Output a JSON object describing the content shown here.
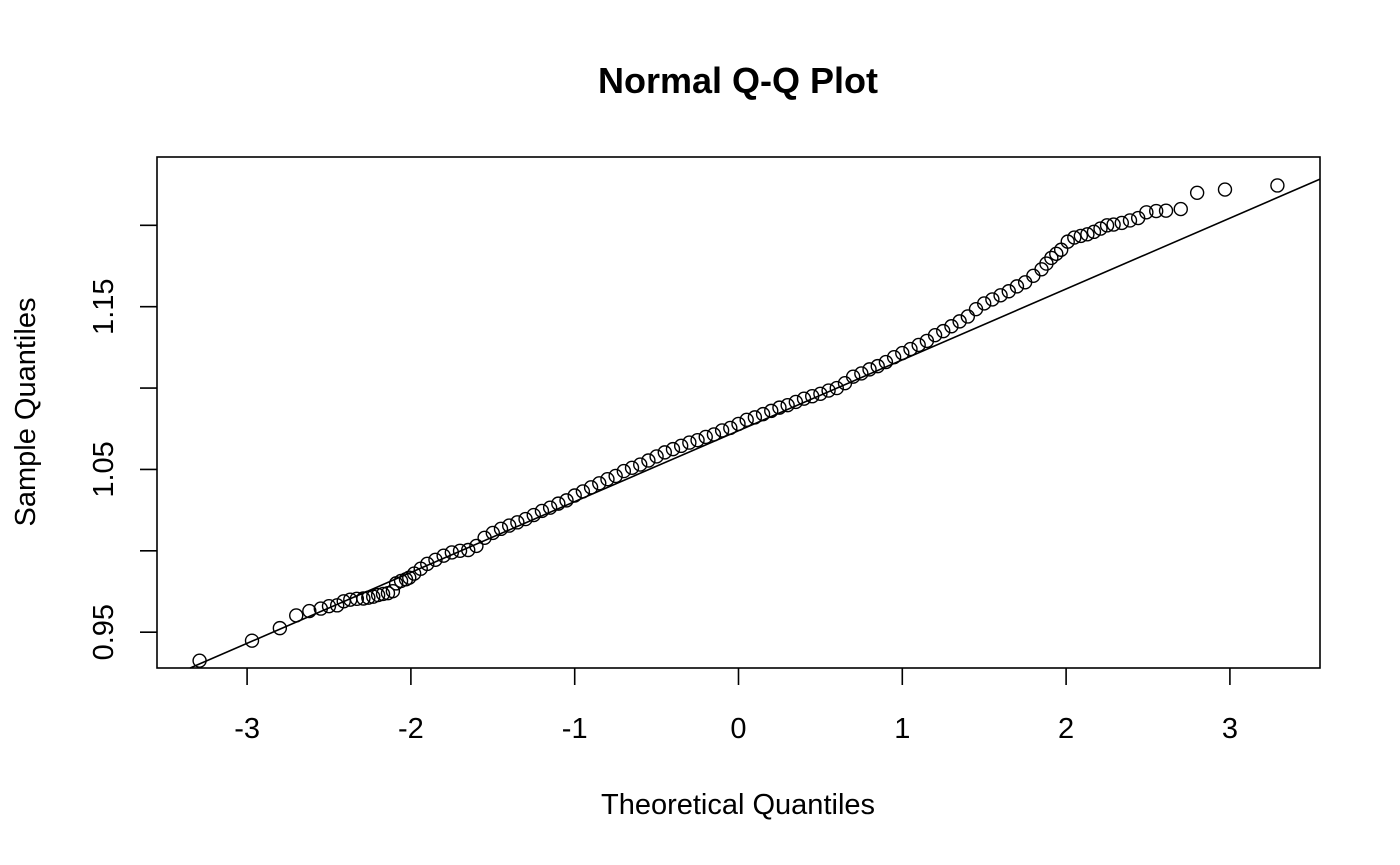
{
  "chart_data": {
    "type": "scatter",
    "title": "Normal Q-Q Plot",
    "xlabel": "Theoretical Quantiles",
    "ylabel": "Sample Quantiles",
    "xlim": [
      -3.55,
      3.55
    ],
    "ylim": [
      0.928,
      1.242
    ],
    "x_ticks": [
      -3,
      -2,
      -1,
      0,
      1,
      2,
      3
    ],
    "x_tick_labels": [
      "-3",
      "-2",
      "-1",
      "0",
      "1",
      "2",
      "3"
    ],
    "y_ticks": [
      0.95,
      1.0,
      1.05,
      1.1,
      1.15,
      1.2
    ],
    "y_tick_labels": [
      "0.95",
      "",
      "1.05",
      "",
      "1.15",
      ""
    ],
    "grid": false,
    "reference_line": {
      "intercept": 1.0738,
      "slope": 0.04355
    },
    "marker": "open-circle",
    "points": [
      [
        -3.29,
        0.9325
      ],
      [
        -2.97,
        0.9448
      ],
      [
        -2.8,
        0.9525
      ],
      [
        -2.7,
        0.9603
      ],
      [
        -2.62,
        0.963
      ],
      [
        -2.55,
        0.9645
      ],
      [
        -2.5,
        0.966
      ],
      [
        -2.45,
        0.9665
      ],
      [
        -2.41,
        0.969
      ],
      [
        -2.37,
        0.97
      ],
      [
        -2.33,
        0.9705
      ],
      [
        -2.29,
        0.9707
      ],
      [
        -2.26,
        0.9712
      ],
      [
        -2.23,
        0.9718
      ],
      [
        -2.2,
        0.9728
      ],
      [
        -2.17,
        0.9735
      ],
      [
        -2.14,
        0.974
      ],
      [
        -2.11,
        0.9752
      ],
      [
        -2.09,
        0.98
      ],
      [
        -2.06,
        0.9815
      ],
      [
        -2.03,
        0.9825
      ],
      [
        -2.01,
        0.9835
      ],
      [
        -1.98,
        0.986
      ],
      [
        -1.94,
        0.989
      ],
      [
        -1.9,
        0.992
      ],
      [
        -1.85,
        0.9945
      ],
      [
        -1.8,
        0.997
      ],
      [
        -1.75,
        0.999
      ],
      [
        -1.7,
        1.0
      ],
      [
        -1.65,
        1.0005
      ],
      [
        -1.6,
        1.003
      ],
      [
        -1.55,
        1.008
      ],
      [
        -1.5,
        1.011
      ],
      [
        -1.45,
        1.0135
      ],
      [
        -1.4,
        1.0155
      ],
      [
        -1.35,
        1.0175
      ],
      [
        -1.3,
        1.0195
      ],
      [
        -1.25,
        1.022
      ],
      [
        -1.2,
        1.0245
      ],
      [
        -1.15,
        1.0265
      ],
      [
        -1.1,
        1.029
      ],
      [
        -1.05,
        1.031
      ],
      [
        -1.0,
        1.034
      ],
      [
        -0.95,
        1.0365
      ],
      [
        -0.9,
        1.039
      ],
      [
        -0.85,
        1.0415
      ],
      [
        -0.8,
        1.044
      ],
      [
        -0.75,
        1.046
      ],
      [
        -0.7,
        1.049
      ],
      [
        -0.65,
        1.051
      ],
      [
        -0.6,
        1.053
      ],
      [
        -0.55,
        1.0555
      ],
      [
        -0.5,
        1.058
      ],
      [
        -0.45,
        1.0605
      ],
      [
        -0.4,
        1.0625
      ],
      [
        -0.35,
        1.0645
      ],
      [
        -0.3,
        1.0665
      ],
      [
        -0.25,
        1.068
      ],
      [
        -0.2,
        1.07
      ],
      [
        -0.15,
        1.0715
      ],
      [
        -0.1,
        1.074
      ],
      [
        -0.05,
        1.0755
      ],
      [
        0.0,
        1.078
      ],
      [
        0.05,
        1.0805
      ],
      [
        0.1,
        1.082
      ],
      [
        0.15,
        1.084
      ],
      [
        0.2,
        1.086
      ],
      [
        0.25,
        1.088
      ],
      [
        0.3,
        1.0895
      ],
      [
        0.35,
        1.0915
      ],
      [
        0.4,
        1.0935
      ],
      [
        0.45,
        1.095
      ],
      [
        0.5,
        1.0965
      ],
      [
        0.55,
        1.0985
      ],
      [
        0.6,
        1.1
      ],
      [
        0.65,
        1.103
      ],
      [
        0.7,
        1.107
      ],
      [
        0.75,
        1.109
      ],
      [
        0.8,
        1.1115
      ],
      [
        0.85,
        1.1135
      ],
      [
        0.9,
        1.116
      ],
      [
        0.95,
        1.119
      ],
      [
        1.0,
        1.1215
      ],
      [
        1.05,
        1.124
      ],
      [
        1.1,
        1.1265
      ],
      [
        1.15,
        1.129
      ],
      [
        1.2,
        1.1325
      ],
      [
        1.25,
        1.135
      ],
      [
        1.3,
        1.138
      ],
      [
        1.35,
        1.141
      ],
      [
        1.4,
        1.144
      ],
      [
        1.45,
        1.1485
      ],
      [
        1.5,
        1.152
      ],
      [
        1.55,
        1.1545
      ],
      [
        1.6,
        1.157
      ],
      [
        1.65,
        1.1595
      ],
      [
        1.7,
        1.1625
      ],
      [
        1.75,
        1.165
      ],
      [
        1.8,
        1.169
      ],
      [
        1.85,
        1.173
      ],
      [
        1.88,
        1.1765
      ],
      [
        1.91,
        1.18
      ],
      [
        1.94,
        1.1825
      ],
      [
        1.97,
        1.185
      ],
      [
        2.01,
        1.19
      ],
      [
        2.05,
        1.1925
      ],
      [
        2.09,
        1.1935
      ],
      [
        2.13,
        1.1945
      ],
      [
        2.17,
        1.196
      ],
      [
        2.21,
        1.198
      ],
      [
        2.25,
        1.2
      ],
      [
        2.29,
        1.2005
      ],
      [
        2.34,
        1.2015
      ],
      [
        2.39,
        1.203
      ],
      [
        2.44,
        1.2045
      ],
      [
        2.49,
        1.208
      ],
      [
        2.55,
        1.2088
      ],
      [
        2.61,
        1.209
      ],
      [
        2.7,
        1.21
      ],
      [
        2.8,
        1.22
      ],
      [
        2.97,
        1.222
      ],
      [
        3.29,
        1.2245
      ]
    ]
  }
}
